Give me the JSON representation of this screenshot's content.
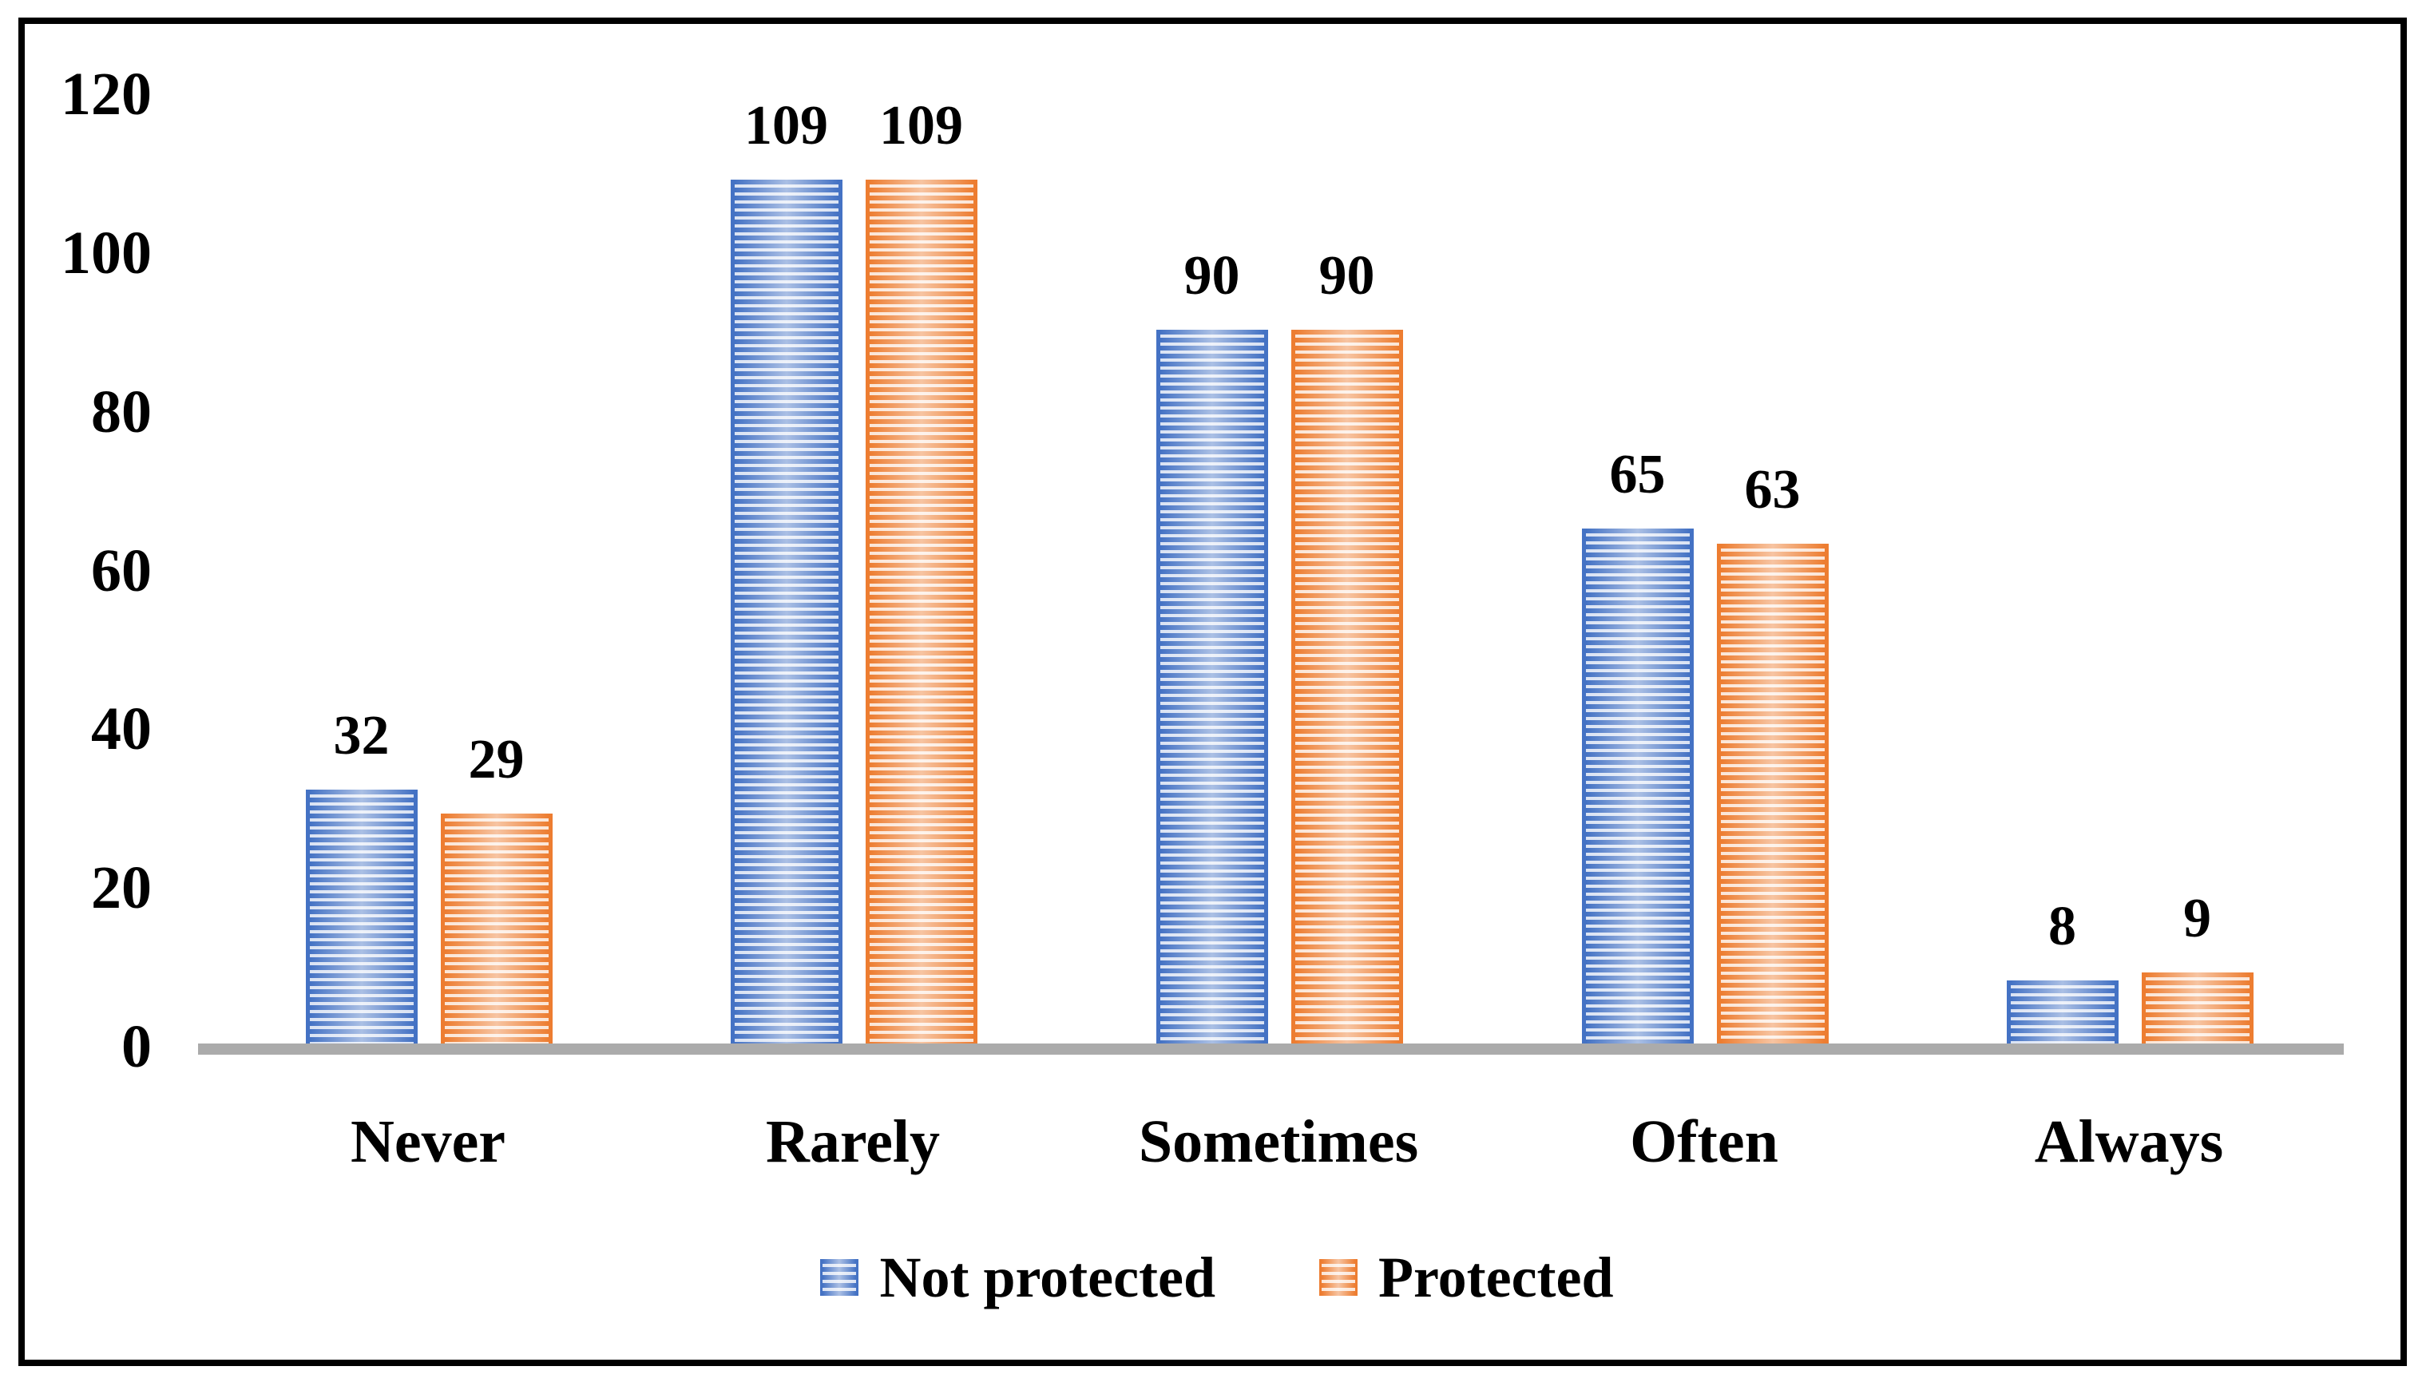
{
  "chart_data": {
    "type": "bar",
    "title": "",
    "categories": [
      "Never",
      "Rarely",
      "Sometimes",
      "Often",
      "Always"
    ],
    "series": [
      {
        "name": "Not protected",
        "color": "#4472C4",
        "tint": "#D9E2F3",
        "values": [
          32,
          109,
          90,
          65,
          8
        ]
      },
      {
        "name": "Protected",
        "color": "#ED7D31",
        "tint": "#FBE5D6",
        "values": [
          29,
          109,
          90,
          63,
          9
        ]
      }
    ],
    "data_labels": [
      [
        "32",
        "109",
        "90",
        "65",
        "8"
      ],
      [
        "29",
        "109",
        "90",
        "63",
        "9"
      ]
    ],
    "xlabel": "",
    "ylabel": "",
    "y_axis": {
      "ticks": [
        "0",
        "20",
        "40",
        "60",
        "80",
        "100",
        "120"
      ],
      "min": 0,
      "max": 120
    },
    "grid": false,
    "legend_position": "bottom",
    "pattern": "horizontal-stripes",
    "axis_line_color": "#ABABAB",
    "frame_color": "#000000",
    "background_color": "#FFFFFF"
  }
}
